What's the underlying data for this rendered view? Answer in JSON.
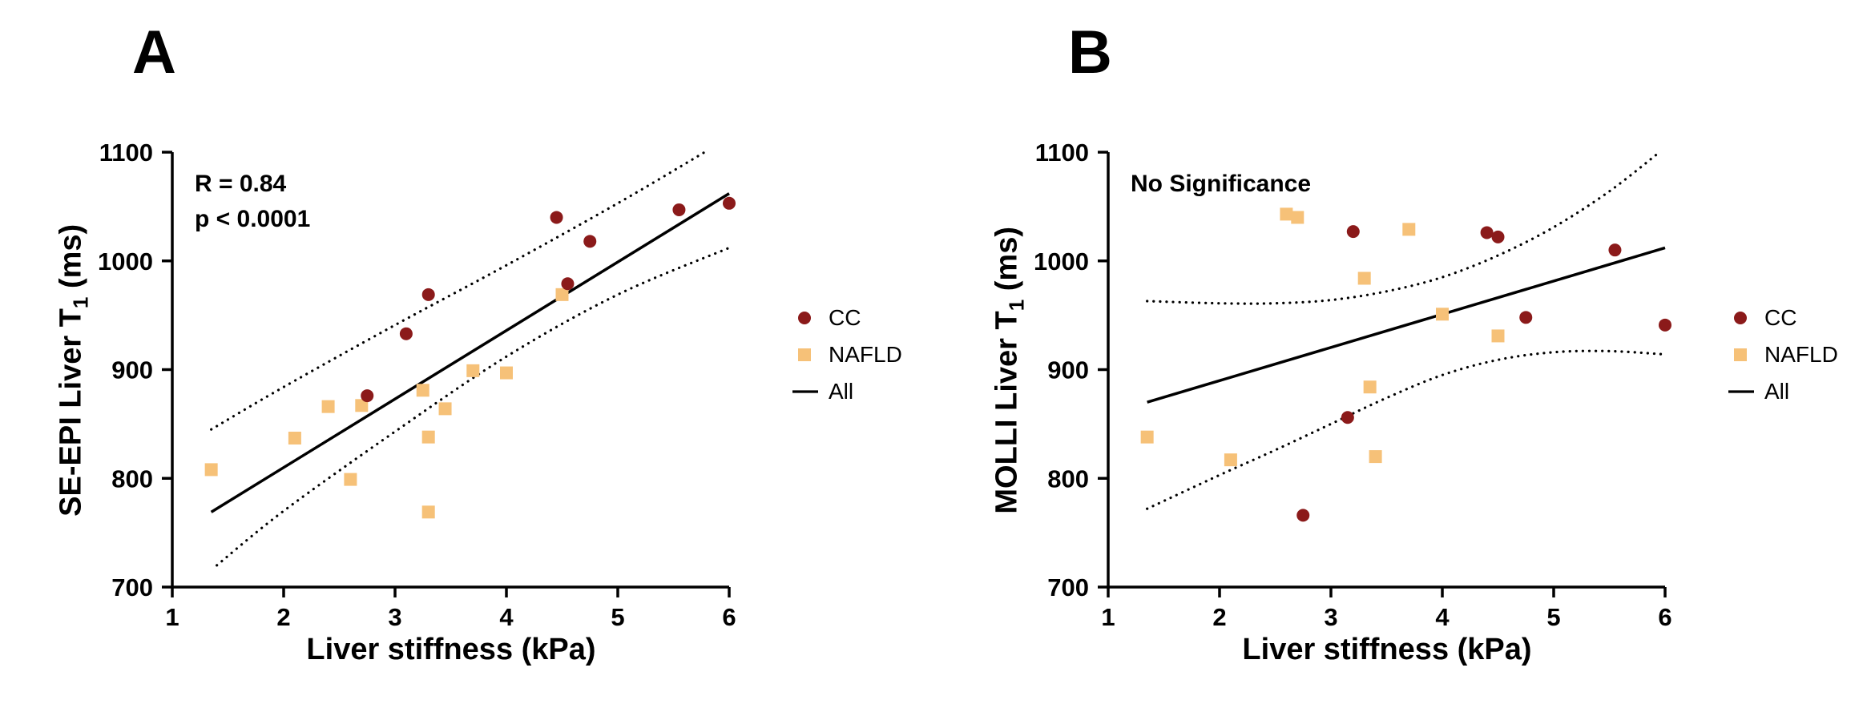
{
  "page": {
    "background": "#FFFFFF"
  },
  "panels": [
    {
      "label": "A",
      "annotation_lines": [
        "R = 0.84",
        "p < 0.0001"
      ],
      "ylabel": {
        "prefix": "SE-EPI Liver T",
        "sub": "1",
        "suffix": " (ms)"
      },
      "xlabel": "Liver stiffness (kPa)",
      "legend": [
        {
          "label": "CC",
          "marker": "circle",
          "color": "#8B1A1A"
        },
        {
          "label": "NAFLD",
          "marker": "square",
          "color": "#F6C178"
        },
        {
          "label": "All",
          "marker": "line",
          "color": "#000000"
        }
      ]
    },
    {
      "label": "B",
      "annotation_lines": [
        "No Significance"
      ],
      "ylabel": {
        "prefix": "MOLLI Liver T",
        "sub": "1",
        "suffix": " (ms)"
      },
      "xlabel": "Liver stiffness (kPa)",
      "legend": [
        {
          "label": "CC",
          "marker": "circle",
          "color": "#8B1A1A"
        },
        {
          "label": "NAFLD",
          "marker": "square",
          "color": "#F6C178"
        },
        {
          "label": "All",
          "marker": "line",
          "color": "#000000"
        }
      ]
    }
  ],
  "chart_data": [
    {
      "type": "scatter",
      "panel": "A",
      "title": "",
      "xlabel": "Liver stiffness (kPa)",
      "ylabel": "SE-EPI Liver T1 (ms)",
      "xlim": [
        1,
        6
      ],
      "ylim": [
        700,
        1100
      ],
      "xticks": [
        1,
        2,
        3,
        4,
        5,
        6
      ],
      "yticks": [
        700,
        800,
        900,
        1000,
        1100
      ],
      "annotation": "R = 0.84, p < 0.0001",
      "grid": false,
      "legend_position": "right",
      "series": [
        {
          "name": "CC",
          "marker": "circle",
          "color": "#8B1A1A",
          "points": [
            [
              2.75,
              876
            ],
            [
              3.1,
              933
            ],
            [
              3.3,
              969
            ],
            [
              4.45,
              1040
            ],
            [
              4.55,
              979
            ],
            [
              4.75,
              1018
            ],
            [
              5.55,
              1047
            ],
            [
              6.0,
              1053
            ]
          ]
        },
        {
          "name": "NAFLD",
          "marker": "square",
          "color": "#F6C178",
          "points": [
            [
              1.35,
              808
            ],
            [
              2.1,
              837
            ],
            [
              2.4,
              866
            ],
            [
              2.6,
              799
            ],
            [
              2.7,
              867
            ],
            [
              3.25,
              881
            ],
            [
              3.3,
              838
            ],
            [
              3.3,
              769
            ],
            [
              3.45,
              864
            ],
            [
              3.7,
              899
            ],
            [
              4.0,
              897
            ],
            [
              4.5,
              969
            ]
          ]
        }
      ],
      "fit_line": {
        "name": "All",
        "color": "#000000",
        "points": [
          [
            1.35,
            769
          ],
          [
            6.0,
            1062
          ]
        ]
      },
      "ci_upper": [
        [
          1.35,
          845
        ],
        [
          2.0,
          884
        ],
        [
          3.0,
          941
        ],
        [
          4.0,
          996
        ],
        [
          5.0,
          1053
        ],
        [
          5.78,
          1100
        ]
      ],
      "ci_lower": [
        [
          1.4,
          720
        ],
        [
          2.0,
          770
        ],
        [
          3.0,
          843
        ],
        [
          4.0,
          912
        ],
        [
          5.0,
          969
        ],
        [
          6.0,
          1012
        ]
      ]
    },
    {
      "type": "scatter",
      "panel": "B",
      "title": "",
      "xlabel": "Liver stiffness (kPa)",
      "ylabel": "MOLLI Liver T1 (ms)",
      "xlim": [
        1,
        6
      ],
      "ylim": [
        700,
        1100
      ],
      "xticks": [
        1,
        2,
        3,
        4,
        5,
        6
      ],
      "yticks": [
        700,
        800,
        900,
        1000,
        1100
      ],
      "annotation": "No Significance",
      "grid": false,
      "legend_position": "right",
      "series": [
        {
          "name": "CC",
          "marker": "circle",
          "color": "#8B1A1A",
          "points": [
            [
              2.75,
              766
            ],
            [
              3.15,
              856
            ],
            [
              3.2,
              1027
            ],
            [
              4.4,
              1026
            ],
            [
              4.5,
              1022
            ],
            [
              4.75,
              948
            ],
            [
              5.55,
              1010
            ],
            [
              6.0,
              941
            ]
          ]
        },
        {
          "name": "NAFLD",
          "marker": "square",
          "color": "#F6C178",
          "points": [
            [
              1.35,
              838
            ],
            [
              2.1,
              817
            ],
            [
              2.6,
              1043
            ],
            [
              2.7,
              1040
            ],
            [
              3.3,
              984
            ],
            [
              3.35,
              884
            ],
            [
              3.4,
              820
            ],
            [
              3.7,
              1029
            ],
            [
              4.0,
              951
            ],
            [
              4.5,
              931
            ]
          ]
        }
      ],
      "fit_line": {
        "name": "All",
        "color": "#000000",
        "points": [
          [
            1.35,
            870
          ],
          [
            6.0,
            1012
          ]
        ]
      },
      "ci_upper": [
        [
          1.35,
          963
        ],
        [
          2.0,
          961
        ],
        [
          2.5,
          961
        ],
        [
          3.0,
          964
        ],
        [
          3.5,
          972
        ],
        [
          4.0,
          985
        ],
        [
          4.5,
          1005
        ],
        [
          5.0,
          1031
        ],
        [
          5.5,
          1064
        ],
        [
          5.95,
          1100
        ]
      ],
      "ci_lower": [
        [
          1.35,
          772
        ],
        [
          2.0,
          803
        ],
        [
          2.5,
          826
        ],
        [
          3.0,
          850
        ],
        [
          3.5,
          874
        ],
        [
          4.0,
          895
        ],
        [
          4.5,
          909
        ],
        [
          5.0,
          916
        ],
        [
          5.5,
          917
        ],
        [
          6.0,
          914
        ]
      ]
    }
  ]
}
